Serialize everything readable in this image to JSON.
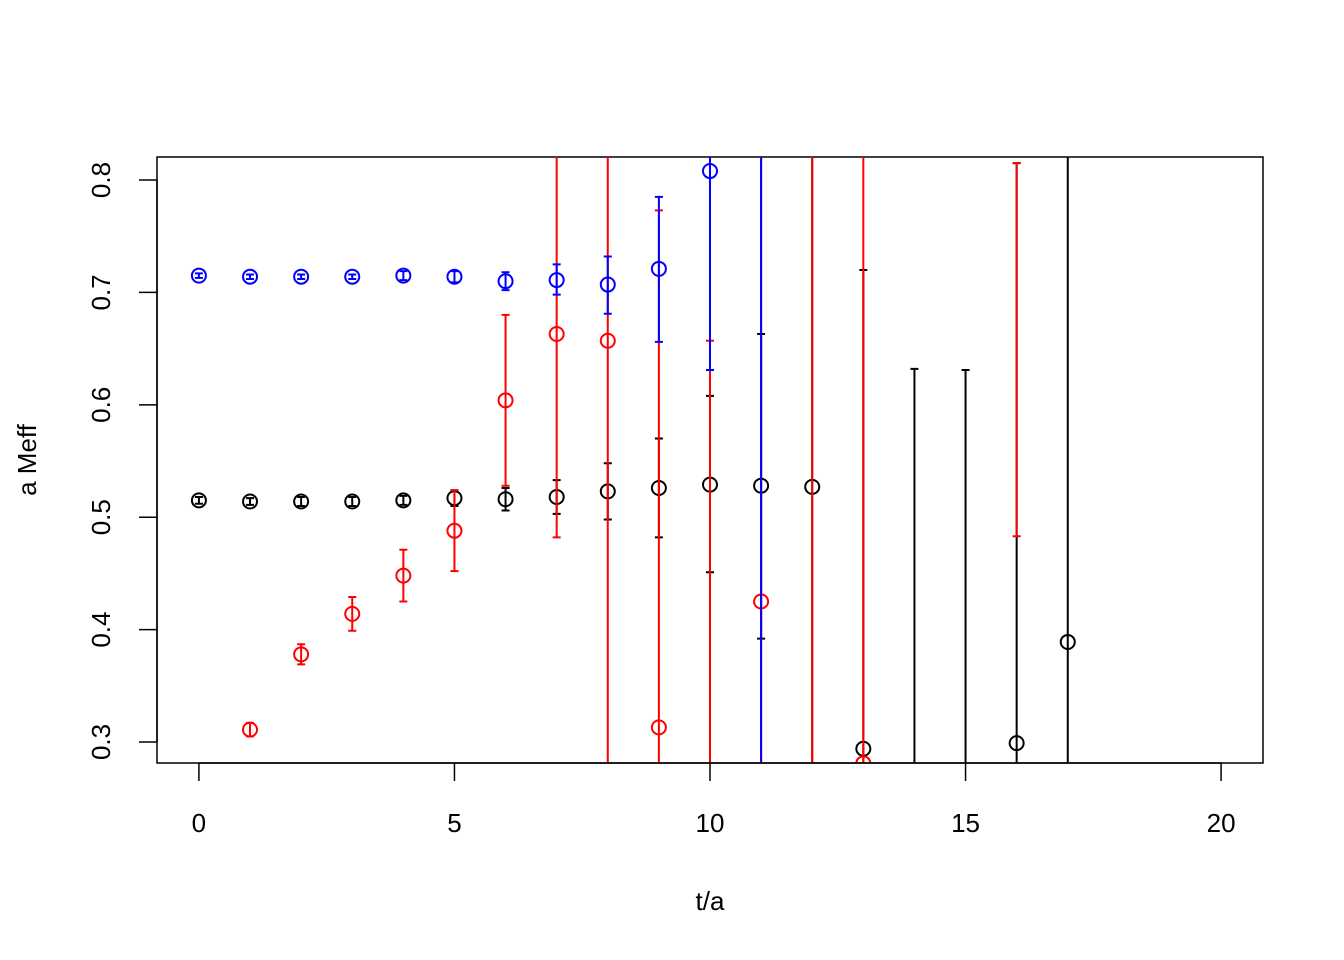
{
  "chart_data": {
    "type": "errorbar-scatter",
    "xlabel": "t/a",
    "ylabel": "a Meff",
    "xlim": [
      -0.82,
      20.82
    ],
    "ylim": [
      0.2813,
      0.8205
    ],
    "xticks": [
      0,
      5,
      10,
      15,
      20
    ],
    "yticks": [
      0.3,
      0.4,
      0.5,
      0.6,
      0.7,
      0.8
    ],
    "series": [
      {
        "color": "#000000",
        "x": [
          0,
          1,
          2,
          3,
          4,
          5,
          6,
          7,
          8,
          9,
          10,
          11,
          12,
          13,
          14,
          15,
          16,
          17
        ],
        "values": [
          0.515,
          0.514,
          0.514,
          0.514,
          0.515,
          0.517,
          0.516,
          0.518,
          0.523,
          0.526,
          0.529,
          0.528,
          0.527,
          0.294,
          null,
          null,
          0.299,
          0.389
        ],
        "lower": [
          0.512,
          0.511,
          0.51,
          0.51,
          0.511,
          0.51,
          0.506,
          0.503,
          0.498,
          0.482,
          0.451,
          0.392,
          0.2,
          0.2,
          0.2,
          0.2,
          0.2,
          0.2
        ],
        "upper": [
          0.518,
          0.517,
          0.518,
          0.518,
          0.519,
          0.524,
          0.526,
          0.533,
          0.548,
          0.57,
          0.608,
          0.663,
          1.0,
          0.72,
          0.632,
          0.631,
          0.815,
          1.0
        ]
      },
      {
        "color": "#ff0000",
        "x": [
          1,
          2,
          3,
          4,
          5,
          6,
          7,
          8,
          9,
          10,
          11,
          12,
          13,
          16
        ],
        "values": [
          0.311,
          0.378,
          0.414,
          0.448,
          0.488,
          0.604,
          0.663,
          0.657,
          0.313,
          null,
          0.425,
          null,
          0.281,
          null
        ],
        "lower": [
          0.305,
          0.369,
          0.399,
          0.425,
          0.452,
          0.528,
          0.482,
          0.2,
          0.2,
          0.2,
          0.2,
          0.2,
          0.2,
          0.483
        ],
        "upper": [
          0.317,
          0.387,
          0.429,
          0.471,
          0.524,
          0.68,
          1.0,
          1.0,
          0.773,
          0.657,
          1.0,
          1.0,
          1.0,
          0.815
        ]
      },
      {
        "color": "#0000ff",
        "x": [
          0,
          1,
          2,
          3,
          4,
          5,
          6,
          7,
          8,
          9,
          10,
          11
        ],
        "values": [
          0.715,
          0.714,
          0.714,
          0.714,
          0.715,
          0.714,
          0.71,
          0.711,
          0.707,
          0.721,
          0.808,
          null
        ],
        "lower": [
          0.713,
          0.712,
          0.712,
          0.712,
          0.711,
          0.709,
          0.702,
          0.698,
          0.681,
          0.656,
          0.631,
          0.2
        ],
        "upper": [
          0.717,
          0.716,
          0.716,
          0.716,
          0.719,
          0.719,
          0.718,
          0.725,
          0.732,
          0.785,
          1.0,
          1.0
        ]
      }
    ]
  }
}
